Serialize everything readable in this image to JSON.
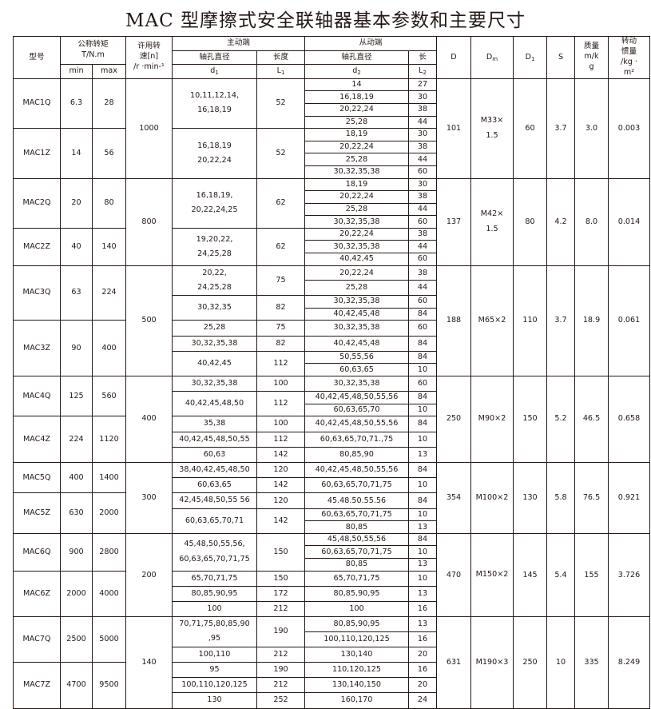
{
  "title": "MAC 型摩擦式安全联轴器基本参数和主要尺寸",
  "header": {
    "model": "型号",
    "torque": "公称转矩\nT/N.m",
    "torque_min": "min",
    "torque_max": "max",
    "speed": "许用转\n速[n]\n/r ·min-¹",
    "drive": "主动端",
    "driven": "从动端",
    "d1_label": "轴孔直径",
    "L1_label": "长度",
    "d2_label": "轴孔直径",
    "L2_label": "长",
    "d1": "d",
    "d1_sub": "1",
    "L1": "L",
    "L1_sub": "1",
    "d2": "d",
    "d2_sub": "2",
    "L2": "L",
    "L2_sub": "2",
    "D": "D",
    "Dm": "D",
    "Dm_sub": "m",
    "D1": "D",
    "D1_sub": "1",
    "S": "S",
    "mass": "质量\nm/k\ng",
    "inertia": "转动\n惯量\n/kg ·\nm²"
  },
  "groups": [
    {
      "speed": "1000",
      "D": "101",
      "Dm": "M33×\n1.5",
      "D1": "60",
      "S": "3.7",
      "mass": "3.0",
      "inertia": "0.003",
      "models": [
        {
          "model": "MAC1Q",
          "min": "6.3",
          "max": "28",
          "drive": [
            {
              "d1": "10,11,12,14,\n16,18,19",
              "L1": "52",
              "rows": 4
            }
          ],
          "driven": [
            {
              "d2": "14",
              "L2": "27"
            },
            {
              "d2": "16,18,19",
              "L2": "30"
            },
            {
              "d2": "20,22,24",
              "L2": "38"
            },
            {
              "d2": "25,28",
              "L2": "44"
            }
          ]
        },
        {
          "model": "MAC1Z",
          "min": "14",
          "max": "56",
          "drive": [
            {
              "d1": "16,18,19\n20,22,24",
              "L1": "52",
              "rows": 4
            }
          ],
          "driven": [
            {
              "d2": "18,19",
              "L2": "30"
            },
            {
              "d2": "20,22,24",
              "L2": "38"
            },
            {
              "d2": "25,28",
              "L2": "44"
            },
            {
              "d2": "30,32,35,38",
              "L2": "60"
            }
          ]
        }
      ]
    },
    {
      "speed": "800",
      "D": "137",
      "Dm": "M42×\n1.5",
      "D1": "80",
      "S": "4.2",
      "mass": "8.0",
      "inertia": "0.014",
      "models": [
        {
          "model": "MAC2Q",
          "min": "20",
          "max": "80",
          "drive": [
            {
              "d1": "16,18,19,\n20,22,24,25",
              "L1": "62",
              "rows": 4
            }
          ],
          "driven": [
            {
              "d2": "18,19",
              "L2": "30"
            },
            {
              "d2": "20,22,24",
              "L2": "38"
            },
            {
              "d2": "25,28",
              "L2": "44"
            },
            {
              "d2": "30,32,35,38",
              "L2": "60"
            }
          ]
        },
        {
          "model": "MAC2Z",
          "min": "40",
          "max": "140",
          "drive": [
            {
              "d1": "19,20,22,\n24,25,28",
              "L1": "62",
              "rows": 3
            }
          ],
          "driven": [
            {
              "d2": "20,22,24",
              "L2": "38"
            },
            {
              "d2": "30,32,35,38",
              "L2": "44"
            },
            {
              "d2": "40,42,45",
              "L2": "60"
            }
          ]
        }
      ]
    },
    {
      "speed": "500",
      "D": "188",
      "Dm": "M65×2",
      "D1": "110",
      "S": "3.7",
      "mass": "18.9",
      "inertia": "0.061",
      "models": [
        {
          "model": "MAC3Q",
          "min": "63",
          "max": "224",
          "drive": [
            {
              "d1": "20,22,\n24,25,28",
              "L1": "75",
              "rows": 2
            },
            {
              "d1": "30,32,35",
              "L1": "82",
              "rows": 2
            }
          ],
          "driven": [
            {
              "d2": "20,22,24",
              "L2": "38"
            },
            {
              "d2": "25,28",
              "L2": "44"
            },
            {
              "d2": "30,32,35,38",
              "L2": "60"
            },
            {
              "d2": "40,42,45,48",
              "L2": "84"
            }
          ]
        },
        {
          "model": "MAC3Z",
          "min": "90",
          "max": "400",
          "drive": [
            {
              "d1": "25,28",
              "L1": "75",
              "rows": 1
            },
            {
              "d1": "30,32,35,38",
              "L1": "82",
              "rows": 1
            },
            {
              "d1": "40,42,45",
              "L1": "112",
              "rows": 2
            }
          ],
          "driven": [
            {
              "d2": "30,32,35,38",
              "L2": "60"
            },
            {
              "d2": "40,42,45,48",
              "L2": "84"
            },
            {
              "d2": "50,55,56",
              "L2": "84"
            },
            {
              "d2": "60,63,65",
              "L2": "10"
            }
          ]
        }
      ]
    },
    {
      "speed": "400",
      "D": "250",
      "Dm": "M90×2",
      "D1": "150",
      "S": "5.2",
      "mass": "46.5",
      "inertia": "0.658",
      "models": [
        {
          "model": "MAC4Q",
          "min": "125",
          "max": "560",
          "drive": [
            {
              "d1": "30,32,35,38",
              "L1": "100",
              "rows": 1
            },
            {
              "d1": "40,42,45,48,50",
              "L1": "112",
              "rows": 2
            }
          ],
          "driven": [
            {
              "d2": "30,32,35,38",
              "L2": "60"
            },
            {
              "d2": "40,42,45,48,50,55,56",
              "L2": "84"
            },
            {
              "d2": "60,63,65,70",
              "L2": "10"
            }
          ]
        },
        {
          "model": "MAC4Z",
          "min": "224",
          "max": "1120",
          "drive": [
            {
              "d1": "35,38",
              "L1": "100",
              "rows": 1
            },
            {
              "d1": "40,42,45,48,50,55",
              "L1": "112",
              "rows": 1
            },
            {
              "d1": "60,63",
              "L1": "142",
              "rows": 1
            }
          ],
          "driven": [
            {
              "d2": "40,42,45,48,50,55,56",
              "L2": "84"
            },
            {
              "d2": "60,63,65,70,71.,75",
              "L2": "10"
            },
            {
              "d2": "80,85,90",
              "L2": "13"
            }
          ]
        }
      ]
    },
    {
      "speed": "300",
      "D": "354",
      "Dm": "M100×2",
      "D1": "130",
      "S": "5.8",
      "mass": "76.5",
      "inertia": "0.921",
      "models": [
        {
          "model": "MAC5Q",
          "min": "400",
          "max": "1400",
          "drive": [
            {
              "d1": "38,40,42,45,48,50",
              "L1": "120",
              "rows": 1
            },
            {
              "d1": "60,63,65",
              "L1": "142",
              "rows": 1
            }
          ],
          "driven": [
            {
              "d2": "40,42,45,48,50,55,56",
              "L2": "84"
            },
            {
              "d2": "60,63,65,70,71,75",
              "L2": "10"
            }
          ]
        },
        {
          "model": "MAC5Z",
          "min": "630",
          "max": "2000",
          "drive": [
            {
              "d1": "42,45,48,50,55 56",
              "L1": "120",
              "rows": 1
            },
            {
              "d1": "60,63,65,70,71",
              "L1": "142",
              "rows": 2
            }
          ],
          "driven": [
            {
              "d2": "45.48.50.55.56",
              "L2": "84"
            },
            {
              "d2": "60,63,65,70,71,75",
              "L2": "10"
            },
            {
              "d2": "80,85",
              "L2": "13"
            }
          ]
        }
      ]
    },
    {
      "speed": "200",
      "D": "470",
      "Dm": "M150×2",
      "D1": "145",
      "S": "5.4",
      "mass": "155",
      "inertia": "3.726",
      "models": [
        {
          "model": "MAC6Q",
          "min": "900",
          "max": "2800",
          "drive": [
            {
              "d1": "45,48,50,55,56,\n60,63,65,70,71,75",
              "L1": "150",
              "rows": 3
            }
          ],
          "driven": [
            {
              "d2": "45,48,50,55,56",
              "L2": "84"
            },
            {
              "d2": "60,63,65,70,71,75",
              "L2": "10"
            },
            {
              "d2": "80,85",
              "L2": "13"
            }
          ]
        },
        {
          "model": "MAC6Z",
          "min": "2000",
          "max": "4000",
          "drive": [
            {
              "d1": "65,70,71,75",
              "L1": "150",
              "rows": 1
            },
            {
              "d1": "80,85,90,95",
              "L1": "172",
              "rows": 1
            },
            {
              "d1": "100",
              "L1": "212",
              "rows": 1
            }
          ],
          "driven": [
            {
              "d2": "65,70,71,75",
              "L2": "10"
            },
            {
              "d2": "80,85,90,95",
              "L2": "13"
            },
            {
              "d2": "100",
              "L2": "16"
            }
          ]
        }
      ]
    },
    {
      "speed": "140",
      "D": "631",
      "Dm": "M190×3",
      "D1": "250",
      "S": "10",
      "mass": "335",
      "inertia": "8.249",
      "models": [
        {
          "model": "MAC7Q",
          "min": "2500",
          "max": "5000",
          "drive": [
            {
              "d1": "70,71,75,80,85,90\n,95",
              "L1": "190",
              "rows": 2
            },
            {
              "d1": "100,110",
              "L1": "212",
              "rows": 1
            }
          ],
          "driven": [
            {
              "d2": "80,85,90,95",
              "L2": "13"
            },
            {
              "d2": "100,110,120,125",
              "L2": "16"
            },
            {
              "d2": "130,140",
              "L2": "20"
            }
          ]
        },
        {
          "model": "MAC7Z",
          "min": "4700",
          "max": "9500",
          "drive": [
            {
              "d1": "95",
              "L1": "190",
              "rows": 1
            },
            {
              "d1": "100,110,120,125",
              "L1": "212",
              "rows": 1
            },
            {
              "d1": "130",
              "L1": "252",
              "rows": 1
            }
          ],
          "driven": [
            {
              "d2": "110,120,125",
              "L2": "16"
            },
            {
              "d2": "130,140,150",
              "L2": "20"
            },
            {
              "d2": "160,170",
              "L2": "24"
            }
          ]
        }
      ]
    }
  ]
}
